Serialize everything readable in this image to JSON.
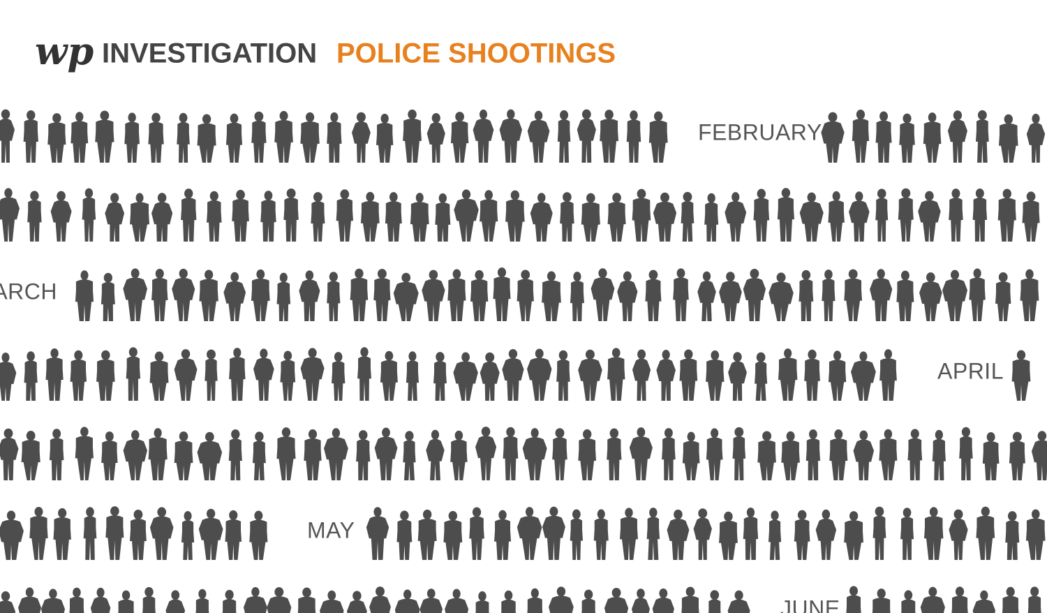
{
  "header": {
    "logo": "wp",
    "section": "INVESTIGATION",
    "title": "POLICE SHOOTINGS"
  },
  "months": [
    "FEBRUARY",
    "MARCH",
    "APRIL",
    "MAY",
    "JUNE"
  ]
}
